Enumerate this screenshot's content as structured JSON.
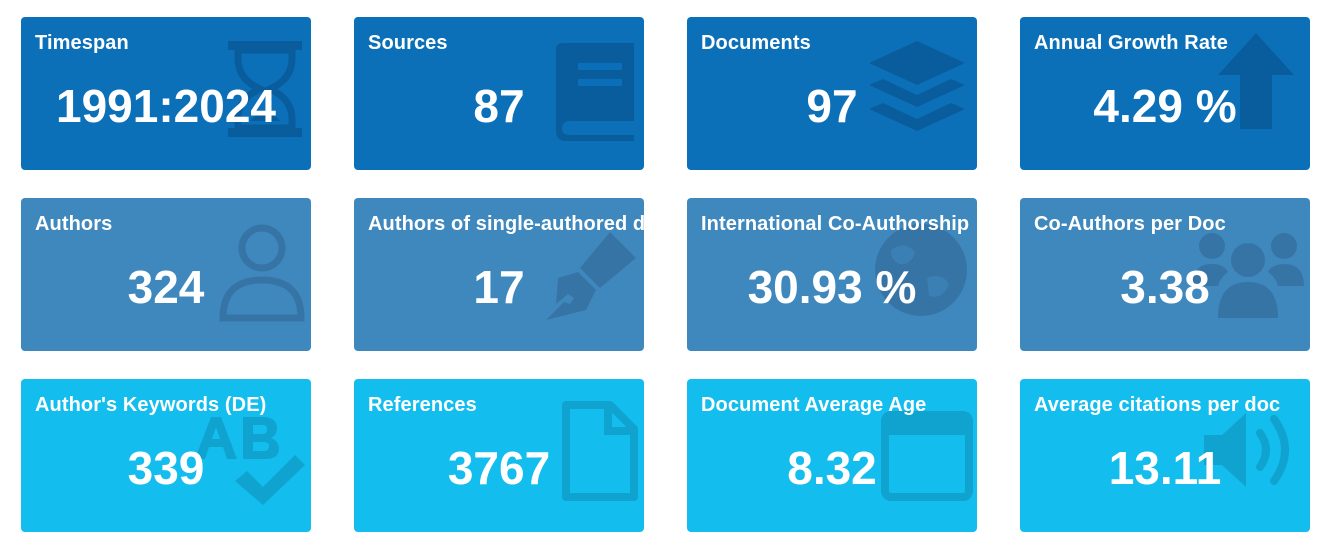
{
  "cards": [
    {
      "label": "Timespan",
      "value": "1991:2024",
      "icon": "hourglass-icon"
    },
    {
      "label": "Sources",
      "value": "87",
      "icon": "book-icon"
    },
    {
      "label": "Documents",
      "value": "97",
      "icon": "layers-icon"
    },
    {
      "label": "Annual Growth Rate",
      "value": "4.29 %",
      "icon": "arrow-up-icon"
    },
    {
      "label": "Authors",
      "value": "324",
      "icon": "user-icon"
    },
    {
      "label": "Authors of single-authored docs",
      "value": "17",
      "icon": "pen-nib-icon"
    },
    {
      "label": "International Co-Authorship",
      "value": "30.93 %",
      "icon": "globe-icon"
    },
    {
      "label": "Co-Authors per Doc",
      "value": "3.38",
      "icon": "users-icon"
    },
    {
      "label": "Author's Keywords (DE)",
      "value": "339",
      "icon": "spell-check-icon"
    },
    {
      "label": "References",
      "value": "3767",
      "icon": "file-icon"
    },
    {
      "label": "Document Average Age",
      "value": "8.32",
      "icon": "calendar-icon"
    },
    {
      "label": "Average citations per doc",
      "value": "13.11",
      "icon": "volume-icon"
    }
  ],
  "colors": {
    "row1": "#0b70b8",
    "row2": "#3f88be",
    "row3": "#13bdee"
  }
}
